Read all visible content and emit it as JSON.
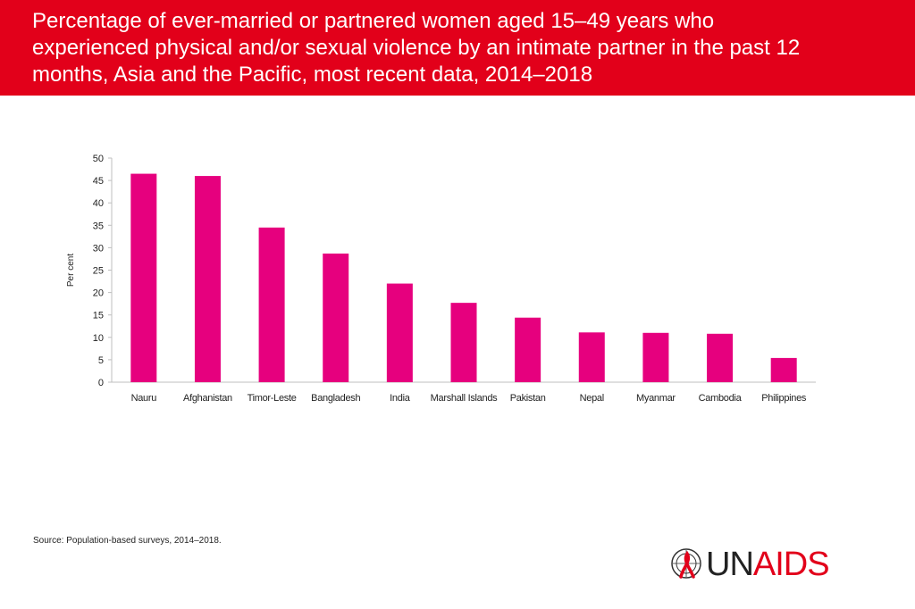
{
  "header": {
    "title": "Percentage of ever-married  or partnered women aged 15–49 years who\nexperienced physical and/or sexual violence by an intimate partner in the past 12\nmonths, Asia and the Pacific, most recent data, 2014–2018"
  },
  "chart_data": {
    "type": "bar",
    "categories": [
      "Nauru",
      "Afghanistan",
      "Timor-Leste",
      "Bangladesh",
      "India",
      "Marshall Islands",
      "Pakistan",
      "Nepal",
      "Myanmar",
      "Cambodia",
      "Philippines"
    ],
    "values": [
      46.5,
      46.0,
      34.5,
      28.7,
      22.0,
      17.7,
      14.4,
      11.1,
      11.0,
      10.8,
      5.4
    ],
    "ylabel": "Per cent",
    "ylim": [
      0,
      50
    ],
    "yticks": [
      0,
      5,
      10,
      15,
      20,
      25,
      30,
      35,
      40,
      45,
      50
    ],
    "bar_color": "#e6007e",
    "grid": false
  },
  "source": {
    "label": "Source:",
    "text": " Population-based surveys, 2014–2018."
  },
  "logo": {
    "un": "UN",
    "aids": "AIDS",
    "brand_color": "#e2001a"
  }
}
